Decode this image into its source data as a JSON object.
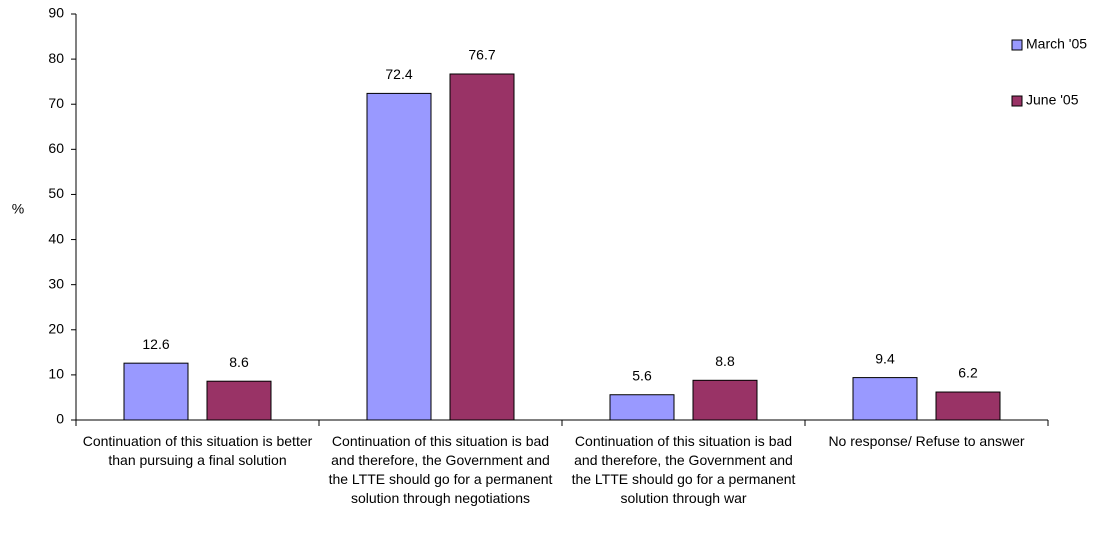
{
  "chart_data": {
    "type": "bar",
    "y_axis_label": "%",
    "categories": [
      "Continuation of this situation is better than pursuing a final solution",
      "Continuation of this situation is bad and therefore, the Government and the LTTE should go for a permanent solution through negotiations",
      "Continuation of this situation is bad and therefore, the Government and the LTTE should go for a permanent solution through war",
      "No response/ Refuse to answer"
    ],
    "series": [
      {
        "name": "March '05",
        "color": "#9999ff",
        "values": [
          12.6,
          72.4,
          5.6,
          9.4
        ]
      },
      {
        "name": "June '05",
        "color": "#993366",
        "values": [
          8.6,
          76.7,
          8.8,
          6.2
        ]
      }
    ],
    "ylim": [
      0,
      90
    ],
    "yticks": [
      0,
      10,
      20,
      30,
      40,
      50,
      60,
      70,
      80,
      90
    ],
    "grid": false,
    "legend": "right"
  }
}
